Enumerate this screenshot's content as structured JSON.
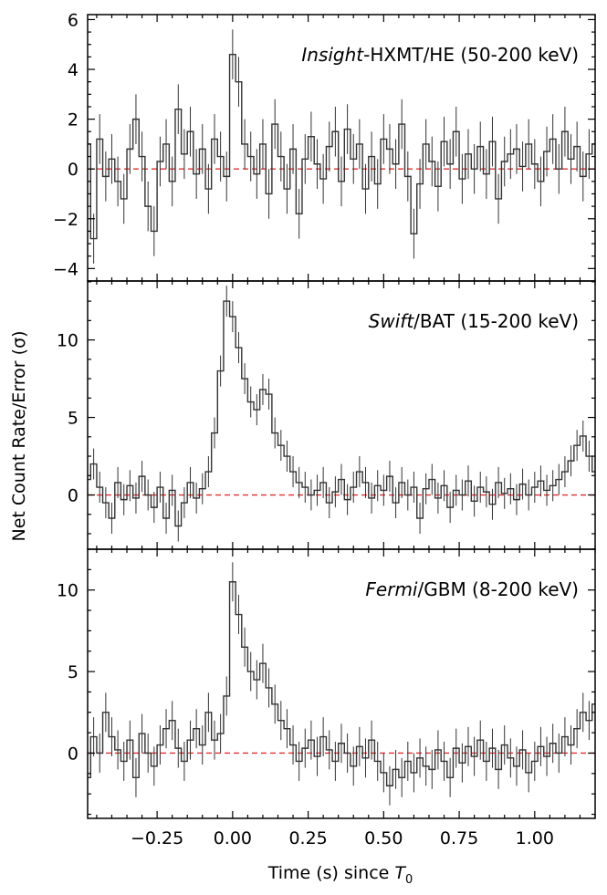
{
  "figure": {
    "ylabel": "Net Count Rate/Error (σ)",
    "xlabel_prefix": "Time (s) since ",
    "xlabel_symbol": "T",
    "xlabel_subscript": "0"
  },
  "chart_data": [
    {
      "type": "line",
      "label_italic": "Insight",
      "label_rest": "-HXMT/HE (50-200 keV)",
      "xlim": [
        -0.48,
        1.2
      ],
      "ylim": [
        -4.5,
        6.2
      ],
      "yticks": [
        -4,
        -2,
        0,
        2,
        4,
        6
      ],
      "xticks": [
        -0.25,
        0.0,
        0.25,
        0.5,
        0.75,
        1.0
      ],
      "baseline": 0,
      "style": "step with error bars",
      "series": [
        {
          "x": [
            -0.48,
            -0.46,
            -0.44,
            -0.42,
            -0.4,
            -0.38,
            -0.36,
            -0.34,
            -0.32,
            -0.3,
            -0.28,
            -0.26,
            -0.24,
            -0.22,
            -0.2,
            -0.18,
            -0.16,
            -0.14,
            -0.12,
            -0.1,
            -0.08,
            -0.06,
            -0.04,
            -0.02,
            0.0,
            0.02,
            0.04,
            0.06,
            0.08,
            0.1,
            0.12,
            0.14,
            0.16,
            0.18,
            0.2,
            0.22,
            0.24,
            0.26,
            0.28,
            0.3,
            0.32,
            0.34,
            0.36,
            0.38,
            0.4,
            0.42,
            0.44,
            0.46,
            0.48,
            0.5,
            0.52,
            0.54,
            0.56,
            0.58,
            0.6,
            0.62,
            0.64,
            0.66,
            0.68,
            0.7,
            0.72,
            0.74,
            0.76,
            0.78,
            0.8,
            0.82,
            0.84,
            0.86,
            0.88,
            0.9,
            0.92,
            0.94,
            0.96,
            0.98,
            1.0,
            1.02,
            1.04,
            1.06,
            1.08,
            1.1,
            1.12,
            1.14,
            1.16,
            1.18,
            1.2
          ],
          "y": [
            1.0,
            -2.8,
            1.2,
            -0.3,
            0.4,
            -0.5,
            -1.2,
            0.8,
            2.0,
            0.5,
            -1.5,
            -2.5,
            0.3,
            1.0,
            -0.5,
            2.4,
            0.6,
            1.5,
            -0.2,
            0.8,
            -0.8,
            1.2,
            0.5,
            -0.3,
            4.6,
            3.5,
            1.0,
            0.5,
            -0.2,
            1.0,
            -1.0,
            1.8,
            0.5,
            -0.8,
            0.8,
            -1.8,
            0.4,
            1.3,
            0.2,
            -0.4,
            0.9,
            1.5,
            -0.5,
            1.6,
            0.4,
            1.0,
            -0.8,
            0.5,
            -0.6,
            1.2,
            0.8,
            0.2,
            1.8,
            -0.3,
            -2.6,
            -0.6,
            1.0,
            0.3,
            -0.7,
            1.1,
            0.2,
            1.5,
            -0.4,
            0.6,
            0.0,
            0.9,
            -0.2,
            1.1,
            -1.2,
            0.3,
            0.6,
            0.8,
            0.1,
            1.0,
            0.2,
            -0.5,
            0.7,
            1.2,
            0.0,
            1.5,
            0.4,
            0.9,
            -0.3,
            0.6,
            1.0
          ],
          "err": 1.0
        }
      ]
    },
    {
      "type": "line",
      "label_italic": "Swift",
      "label_rest": "/BAT (15-200 keV)",
      "xlim": [
        -0.48,
        1.2
      ],
      "ylim": [
        -3.5,
        13.8
      ],
      "yticks": [
        0,
        5,
        10
      ],
      "xticks": [
        -0.25,
        0.0,
        0.25,
        0.5,
        0.75,
        1.0
      ],
      "baseline": 0,
      "style": "step with error bars",
      "series": [
        {
          "x": [
            -0.48,
            -0.46,
            -0.44,
            -0.42,
            -0.4,
            -0.38,
            -0.36,
            -0.34,
            -0.32,
            -0.3,
            -0.28,
            -0.26,
            -0.24,
            -0.22,
            -0.2,
            -0.18,
            -0.16,
            -0.14,
            -0.12,
            -0.1,
            -0.08,
            -0.06,
            -0.04,
            -0.02,
            0.0,
            0.02,
            0.04,
            0.06,
            0.08,
            0.1,
            0.12,
            0.14,
            0.16,
            0.18,
            0.2,
            0.22,
            0.24,
            0.26,
            0.28,
            0.3,
            0.32,
            0.34,
            0.36,
            0.38,
            0.4,
            0.42,
            0.44,
            0.46,
            0.48,
            0.5,
            0.52,
            0.54,
            0.56,
            0.58,
            0.6,
            0.62,
            0.64,
            0.66,
            0.68,
            0.7,
            0.72,
            0.74,
            0.76,
            0.78,
            0.8,
            0.82,
            0.84,
            0.86,
            0.88,
            0.9,
            0.92,
            0.94,
            0.96,
            0.98,
            1.0,
            1.02,
            1.04,
            1.06,
            1.08,
            1.1,
            1.12,
            1.14,
            1.16,
            1.18,
            1.2
          ],
          "y": [
            1.0,
            2.0,
            0.5,
            -0.5,
            -1.5,
            0.8,
            -0.3,
            0.6,
            -0.2,
            1.2,
            0.0,
            -0.8,
            0.5,
            -1.5,
            0.3,
            -2.0,
            -0.5,
            0.8,
            -0.2,
            0.4,
            1.5,
            4.0,
            8.0,
            12.5,
            11.5,
            9.5,
            7.5,
            6.0,
            5.5,
            6.8,
            6.5,
            4.0,
            3.2,
            2.5,
            1.5,
            0.8,
            0.5,
            0.0,
            0.3,
            0.8,
            -0.5,
            0.2,
            1.0,
            -0.3,
            0.5,
            1.5,
            0.8,
            -0.2,
            0.6,
            0.3,
            1.2,
            -0.5,
            0.8,
            0.0,
            0.5,
            -1.5,
            0.4,
            1.0,
            -0.2,
            0.6,
            -0.8,
            0.3,
            0.0,
            0.9,
            -0.4,
            0.5,
            0.2,
            -0.6,
            0.8,
            0.1,
            0.4,
            -0.3,
            0.7,
            0.0,
            0.5,
            0.9,
            0.3,
            0.6,
            1.0,
            1.5,
            2.2,
            3.2,
            3.8,
            2.5,
            1.5
          ],
          "err": 1.0
        }
      ]
    },
    {
      "type": "line",
      "label_italic": "Fermi",
      "label_rest": "/GBM (8-200 keV)",
      "xlim": [
        -0.48,
        1.2
      ],
      "ylim": [
        -4.0,
        12.5
      ],
      "yticks": [
        0,
        5,
        10
      ],
      "xticks": [
        -0.25,
        0.0,
        0.25,
        0.5,
        0.75,
        1.0
      ],
      "baseline": 0,
      "style": "step with error bars",
      "series": [
        {
          "x": [
            -0.48,
            -0.46,
            -0.44,
            -0.42,
            -0.4,
            -0.38,
            -0.36,
            -0.34,
            -0.32,
            -0.3,
            -0.28,
            -0.26,
            -0.24,
            -0.22,
            -0.2,
            -0.18,
            -0.16,
            -0.14,
            -0.12,
            -0.1,
            -0.08,
            -0.06,
            -0.04,
            -0.02,
            0.0,
            0.02,
            0.04,
            0.06,
            0.08,
            0.1,
            0.12,
            0.14,
            0.16,
            0.18,
            0.2,
            0.22,
            0.24,
            0.26,
            0.28,
            0.3,
            0.32,
            0.34,
            0.36,
            0.38,
            0.4,
            0.42,
            0.44,
            0.46,
            0.48,
            0.5,
            0.52,
            0.54,
            0.56,
            0.58,
            0.6,
            0.62,
            0.64,
            0.66,
            0.68,
            0.7,
            0.72,
            0.74,
            0.76,
            0.78,
            0.8,
            0.82,
            0.84,
            0.86,
            0.88,
            0.9,
            0.92,
            0.94,
            0.96,
            0.98,
            1.0,
            1.02,
            1.04,
            1.06,
            1.08,
            1.1,
            1.12,
            1.14,
            1.16,
            1.18,
            1.2
          ],
          "y": [
            -1.5,
            1.0,
            0.0,
            2.5,
            1.0,
            0.2,
            -0.5,
            0.8,
            -1.5,
            1.2,
            0.0,
            -0.8,
            0.5,
            1.5,
            2.0,
            0.3,
            -0.5,
            0.8,
            1.5,
            0.5,
            2.5,
            0.8,
            1.2,
            3.5,
            10.5,
            8.5,
            6.5,
            5.0,
            4.5,
            5.5,
            4.0,
            3.0,
            2.0,
            1.5,
            0.5,
            -0.5,
            0.3,
            0.8,
            -0.2,
            1.0,
            0.2,
            -0.5,
            0.6,
            0.0,
            -0.8,
            0.4,
            -0.3,
            0.8,
            -0.5,
            -1.2,
            -2.0,
            -1.0,
            -1.5,
            -0.5,
            -1.2,
            -0.3,
            -0.8,
            -1.0,
            0.2,
            -0.5,
            -1.5,
            0.3,
            -0.6,
            0.4,
            -0.2,
            0.8,
            -0.5,
            0.3,
            -1.0,
            0.5,
            -0.3,
            -0.8,
            0.2,
            -1.2,
            -0.5,
            0.4,
            -0.2,
            0.6,
            0.0,
            1.0,
            0.5,
            1.5,
            2.5,
            2.0,
            3.0
          ],
          "err": 1.2
        }
      ]
    }
  ]
}
